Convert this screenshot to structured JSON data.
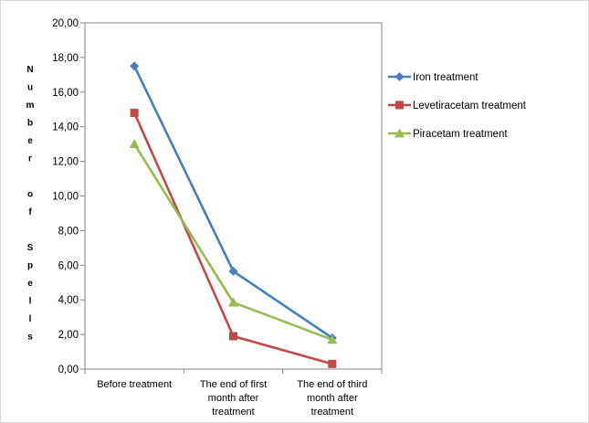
{
  "chart_data": {
    "type": "line",
    "title": "",
    "xlabel": "",
    "ylabel": "Number of Spells",
    "ylim": [
      0,
      20
    ],
    "ytick_step": 2,
    "ytick_labels": [
      "0,00",
      "2,00",
      "4,00",
      "6,00",
      "8,00",
      "10,00",
      "12,00",
      "14,00",
      "16,00",
      "18,00",
      "20,00"
    ],
    "categories": [
      [
        "Before treatment"
      ],
      [
        "The end of first",
        "month after",
        "treatment"
      ],
      [
        "The end of third",
        "month after",
        "treatment"
      ]
    ],
    "series": [
      {
        "name": "Iron treatment",
        "values": [
          17.5,
          5.65,
          1.8
        ],
        "color": "#4a7ebb",
        "marker": "diamond"
      },
      {
        "name": "Levetiracetam treatment",
        "values": [
          14.8,
          1.9,
          0.3
        ],
        "color": "#be4b48",
        "marker": "square"
      },
      {
        "name": "Piracetam treatment",
        "values": [
          13.0,
          3.85,
          1.7
        ],
        "color": "#98b954",
        "marker": "triangle"
      }
    ],
    "grid": false,
    "legend_position": "right"
  }
}
